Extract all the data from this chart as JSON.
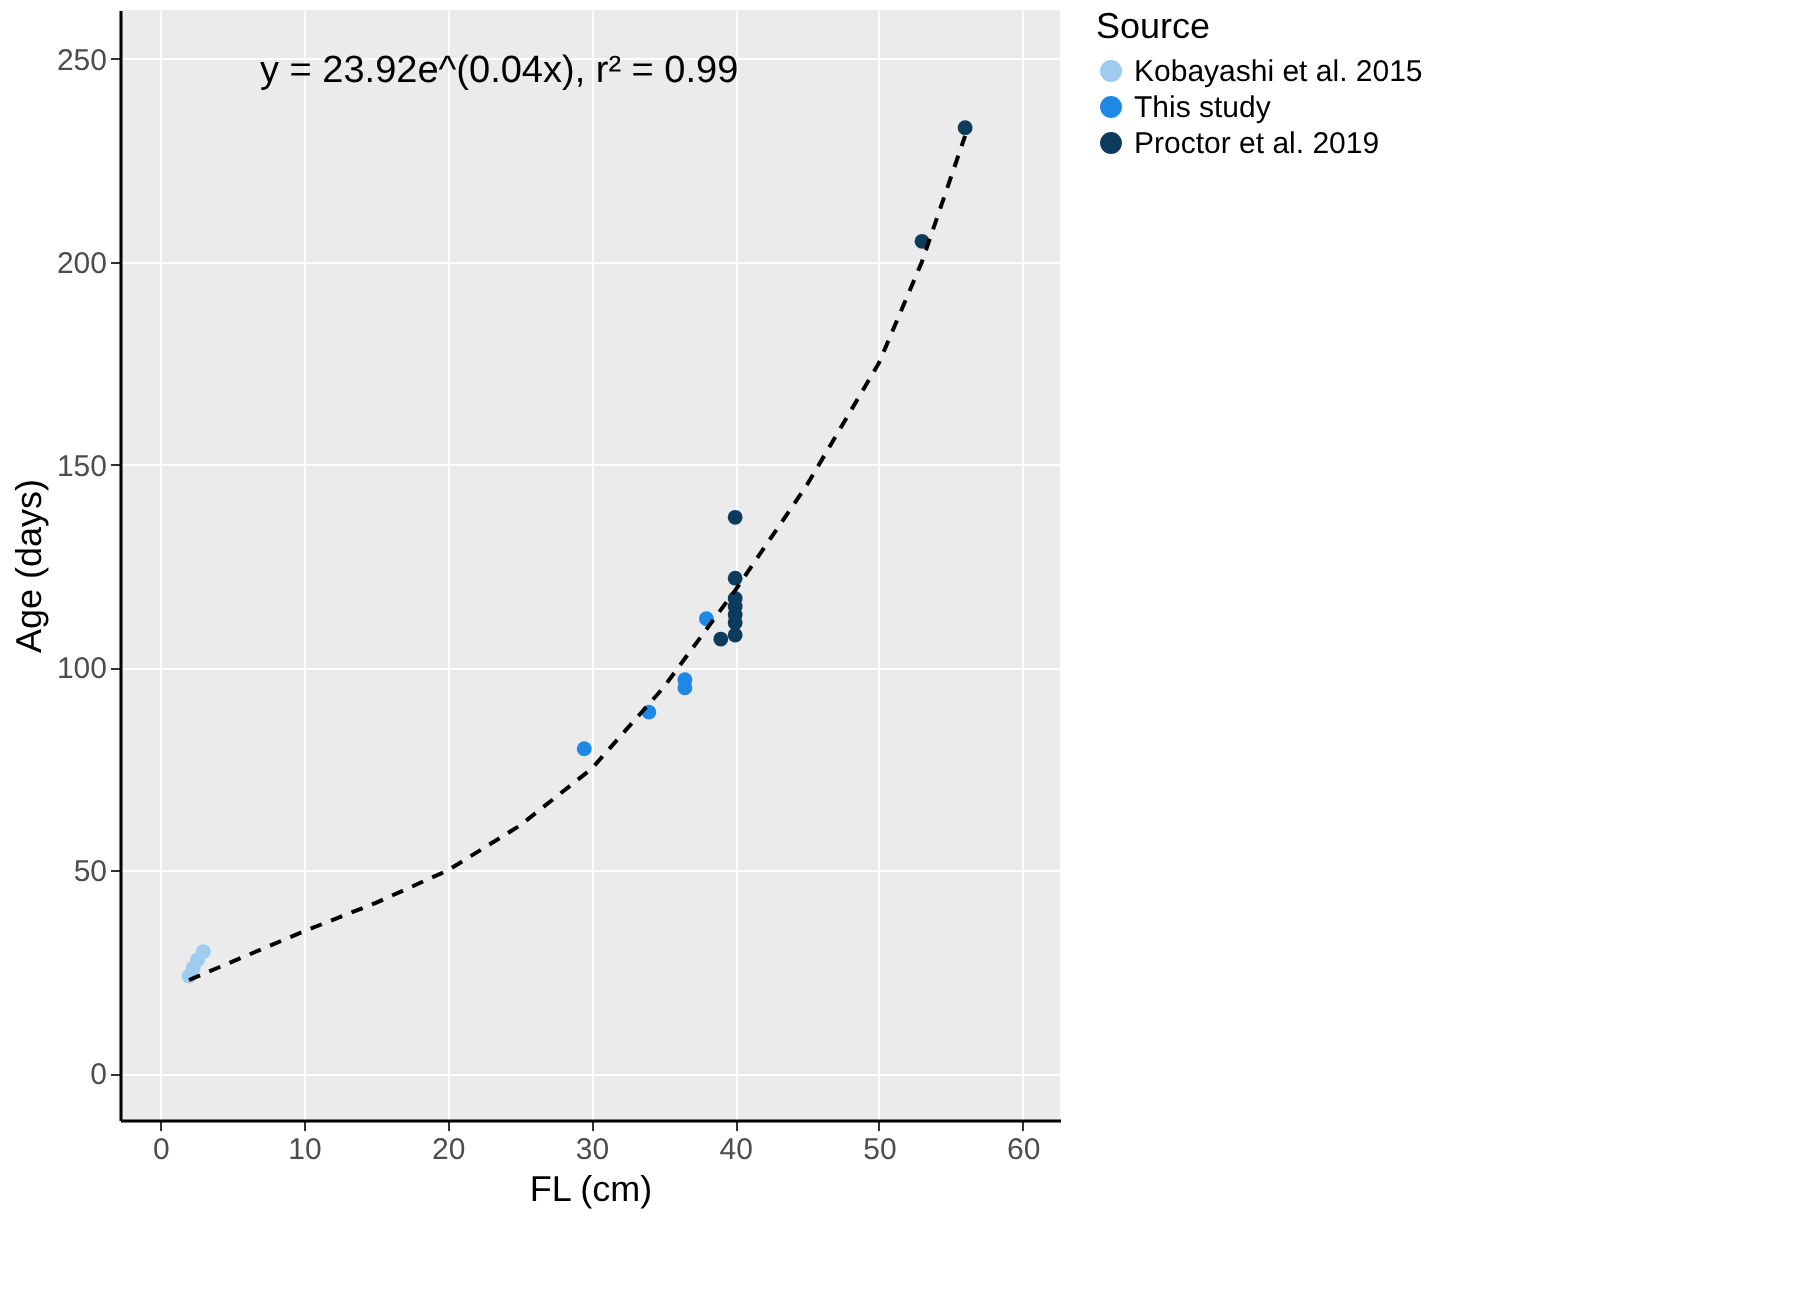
{
  "chart_data": {
    "type": "scatter",
    "xlabel": "FL (cm)",
    "ylabel": "Age (days)",
    "legend_title": "Source",
    "legend": "right",
    "grid": true,
    "marker": "circle",
    "xlim": [
      -2.8,
      62.6
    ],
    "xticks": [
      0,
      10,
      20,
      30,
      40,
      50,
      60
    ],
    "ylim": [
      -11.5,
      262
    ],
    "yticks": [
      0,
      50,
      100,
      150,
      200,
      250
    ],
    "annotations": [
      "y = 23.92e^(0.04x),  r² = 0.99"
    ],
    "series": [
      {
        "name": "Kobayashi et al. 2015",
        "color": "#9ecbef",
        "x": [
          2.0,
          2.3,
          2.6,
          3.0
        ],
        "values": [
          24,
          26,
          28,
          30
        ]
      },
      {
        "name": "This study",
        "color": "#1e88e5",
        "x": [
          29.5,
          34,
          36.5,
          36.5,
          38
        ],
        "values": [
          80,
          89,
          95,
          97,
          112
        ]
      },
      {
        "name": "Proctor et al. 2019",
        "color": "#0d3b5e",
        "x": [
          40,
          40,
          40,
          40,
          40,
          40,
          40,
          39,
          53,
          56
        ],
        "values": [
          137,
          122,
          117,
          115,
          113,
          111,
          108,
          107,
          205,
          233
        ]
      },
      {
        "type": "line",
        "color": "#000000",
        "line_style": "dashed",
        "marker": "none",
        "x": [
          2,
          6,
          10,
          15,
          20,
          25,
          30,
          35,
          40,
          45,
          50,
          53,
          56
        ],
        "values": [
          23,
          29,
          35,
          42,
          50,
          61,
          75,
          95,
          119,
          145,
          175,
          200,
          231
        ]
      }
    ]
  }
}
